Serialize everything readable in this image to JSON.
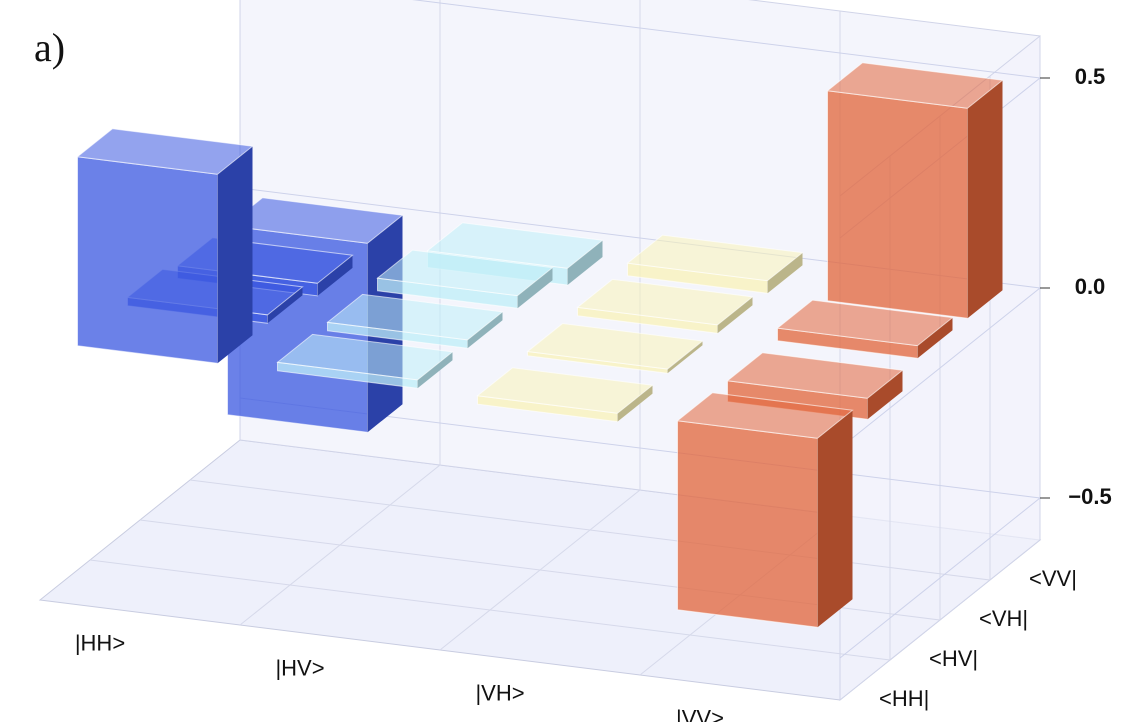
{
  "label": "a)",
  "chart_data": {
    "type": "bar3d",
    "x_categories": [
      "|HH>",
      "|HV>",
      "|VH>",
      "|VV>"
    ],
    "y_categories": [
      "<HH|",
      "<HV|",
      "<VH|",
      "<VV|"
    ],
    "values": [
      [
        0.45,
        0.02,
        -0.02,
        -0.45
      ],
      [
        0.02,
        0.02,
        0.01,
        -0.05
      ],
      [
        -0.03,
        0.03,
        0.02,
        0.03
      ],
      [
        -0.45,
        -0.04,
        0.03,
        0.5
      ]
    ],
    "colors": [
      "#3a57e0",
      "#bfeef8",
      "#faf2b8",
      "#e2643a"
    ],
    "zlim": [
      -0.6,
      0.6
    ],
    "zticks": [
      {
        "value": -0.5,
        "label": "−0.5"
      },
      {
        "value": 0,
        "label": "0.0"
      },
      0.5
    ]
  }
}
